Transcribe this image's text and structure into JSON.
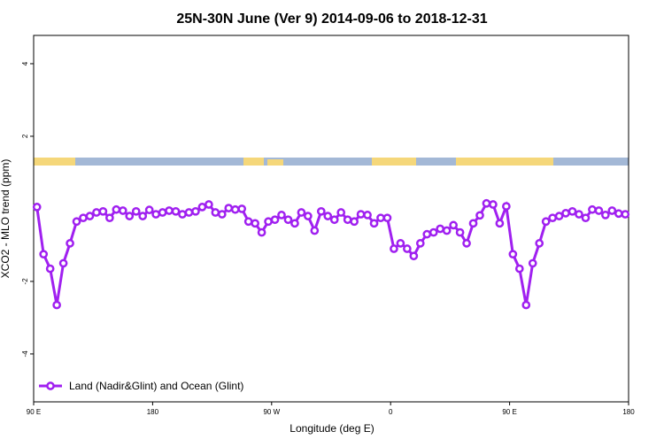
{
  "chart_data": {
    "type": "line",
    "title": "25N-30N June (Ver 9)   2014-09-06 to 2018-12-31",
    "x_label": "Longitude (deg E)",
    "y_label": "XCO2 - MLO trend (ppm)",
    "x": [
      92.5,
      97.5,
      102.5,
      107.5,
      112.5,
      117.5,
      122.5,
      127.5,
      132.5,
      137.5,
      142.5,
      147.5,
      152.5,
      157.5,
      162.5,
      167.5,
      172.5,
      177.5,
      182.5,
      187.5,
      192.5,
      197.5,
      202.5,
      207.5,
      212.5,
      217.5,
      222.5,
      227.5,
      232.5,
      237.5,
      242.5,
      247.5,
      252.5,
      257.5,
      262.5,
      267.5,
      272.5,
      277.5,
      282.5,
      287.5,
      292.5,
      297.5,
      302.5,
      307.5,
      312.5,
      317.5,
      322.5,
      327.5,
      332.5,
      337.5,
      342.5,
      347.5,
      352.5,
      357.5,
      362.5,
      367.5,
      372.5,
      377.5,
      382.5,
      387.5,
      392.5,
      397.5,
      402.5,
      407.5,
      412.5,
      417.5,
      422.5,
      427.5,
      432.5,
      437.5,
      442.5,
      447.5,
      452.5,
      457.5,
      462.5,
      467.5,
      472.5,
      477.5,
      482.5,
      487.5,
      492.5,
      497.5,
      502.5,
      507.5,
      512.5,
      517.5,
      522.5,
      527.5,
      532.5,
      537.5
    ],
    "series": [
      {
        "name": "Land (Nadir&Glint) and Ocean (Glint)",
        "color": "#a020f0",
        "values": [
          0.05,
          -1.25,
          -1.65,
          -2.65,
          -1.5,
          -0.95,
          -0.35,
          -0.25,
          -0.2,
          -0.1,
          -0.07,
          -0.25,
          -0.02,
          -0.05,
          -0.2,
          -0.07,
          -0.2,
          -0.03,
          -0.15,
          -0.1,
          -0.05,
          -0.07,
          -0.15,
          -0.1,
          -0.07,
          0.05,
          0.12,
          -0.1,
          -0.15,
          0.02,
          -0.02,
          0,
          -0.35,
          -0.4,
          -0.65,
          -0.35,
          -0.3,
          -0.17,
          -0.3,
          -0.4,
          -0.1,
          -0.2,
          -0.6,
          -0.07,
          -0.2,
          -0.3,
          -0.1,
          -0.3,
          -0.35,
          -0.15,
          -0.17,
          -0.4,
          -0.25,
          -0.25,
          -1.1,
          -0.95,
          -1.1,
          -1.3,
          -0.95,
          -0.7,
          -0.65,
          -0.55,
          -0.6,
          -0.45,
          -0.65,
          -0.95,
          -0.4,
          -0.18,
          0.15,
          0.12,
          -0.4,
          0.07,
          -1.25,
          -1.65,
          -2.65,
          -1.5,
          -0.95,
          -0.35,
          -0.25,
          -0.2,
          -0.12,
          -0.07,
          -0.15,
          -0.25,
          -0.02,
          -0.05,
          -0.17,
          -0.05,
          -0.13,
          -0.15
        ]
      }
    ],
    "xlim": [
      90,
      540
    ],
    "xticks": [
      {
        "value": 90,
        "label": "90 E"
      },
      180,
      {
        "value": 270,
        "label": "90 W"
      },
      {
        "value": 360,
        "label": "0"
      },
      {
        "value": 450,
        "label": "90 E"
      },
      {
        "value": 540,
        "label": "180"
      }
    ],
    "ylim": [
      -5.32,
      4.78
    ],
    "yticks": [
      -4,
      -2,
      2,
      4
    ],
    "legend": "bottom-left"
  }
}
